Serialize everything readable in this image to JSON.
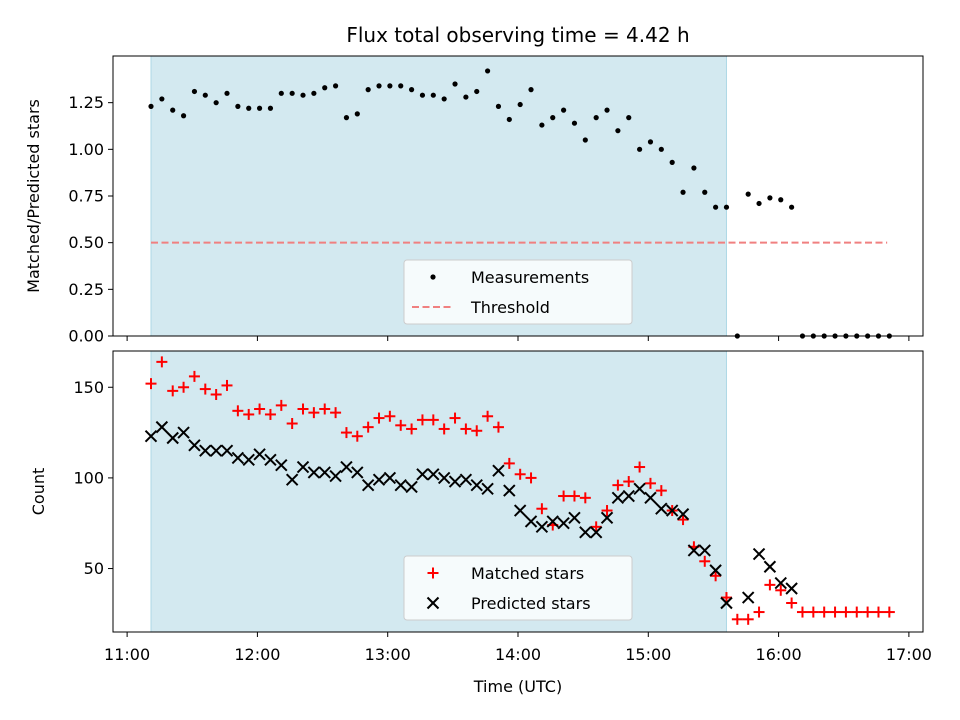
{
  "chart_data": [
    {
      "type": "scatter",
      "title": "Flux total observing time = 4.42 h",
      "ylabel": "Matched/Predicted stars",
      "xlim": [
        "11:00",
        "17:00"
      ],
      "ylim": [
        0,
        1.5
      ],
      "yticks": [
        "0.00",
        "0.25",
        "0.50",
        "0.75",
        "1.00",
        "1.25"
      ],
      "shaded_region": {
        "start": "11:11",
        "end": "15:36",
        "color": "#d3e9f0"
      },
      "threshold": {
        "name": "Threshold",
        "value": 0.5,
        "start": "11:11",
        "end": "16:50",
        "color": "#f08080"
      },
      "series": [
        {
          "name": "Measurements",
          "color": "#000000",
          "points": [
            [
              "11:11",
              1.23
            ],
            [
              "11:16",
              1.27
            ],
            [
              "11:21",
              1.21
            ],
            [
              "11:26",
              1.18
            ],
            [
              "11:31",
              1.31
            ],
            [
              "11:36",
              1.29
            ],
            [
              "11:41",
              1.25
            ],
            [
              "11:46",
              1.3
            ],
            [
              "11:51",
              1.23
            ],
            [
              "11:56",
              1.22
            ],
            [
              "12:01",
              1.22
            ],
            [
              "12:06",
              1.22
            ],
            [
              "12:11",
              1.3
            ],
            [
              "12:16",
              1.3
            ],
            [
              "12:21",
              1.29
            ],
            [
              "12:26",
              1.3
            ],
            [
              "12:31",
              1.33
            ],
            [
              "12:36",
              1.34
            ],
            [
              "12:41",
              1.17
            ],
            [
              "12:46",
              1.19
            ],
            [
              "12:51",
              1.32
            ],
            [
              "12:56",
              1.34
            ],
            [
              "13:01",
              1.34
            ],
            [
              "13:06",
              1.34
            ],
            [
              "13:11",
              1.32
            ],
            [
              "13:16",
              1.29
            ],
            [
              "13:21",
              1.29
            ],
            [
              "13:26",
              1.27
            ],
            [
              "13:31",
              1.35
            ],
            [
              "13:36",
              1.28
            ],
            [
              "13:41",
              1.31
            ],
            [
              "13:46",
              1.42
            ],
            [
              "13:51",
              1.23
            ],
            [
              "13:56",
              1.16
            ],
            [
              "14:01",
              1.24
            ],
            [
              "14:06",
              1.32
            ],
            [
              "14:11",
              1.13
            ],
            [
              "14:16",
              1.17
            ],
            [
              "14:21",
              1.21
            ],
            [
              "14:26",
              1.14
            ],
            [
              "14:31",
              1.05
            ],
            [
              "14:36",
              1.17
            ],
            [
              "14:41",
              1.21
            ],
            [
              "14:46",
              1.1
            ],
            [
              "14:51",
              1.17
            ],
            [
              "14:56",
              1.0
            ],
            [
              "15:01",
              1.04
            ],
            [
              "15:06",
              1.0
            ],
            [
              "15:11",
              0.93
            ],
            [
              "15:16",
              0.77
            ],
            [
              "15:21",
              0.9
            ],
            [
              "15:26",
              0.77
            ],
            [
              "15:31",
              0.69
            ],
            [
              "15:36",
              0.69
            ],
            [
              "15:41",
              0.0
            ],
            [
              "15:46",
              0.76
            ],
            [
              "15:51",
              0.71
            ],
            [
              "15:56",
              0.74
            ],
            [
              "16:01",
              0.73
            ],
            [
              "16:06",
              0.69
            ],
            [
              "16:11",
              0.0
            ],
            [
              "16:16",
              0.0
            ],
            [
              "16:21",
              0.0
            ],
            [
              "16:26",
              0.0
            ],
            [
              "16:31",
              0.0
            ],
            [
              "16:36",
              0.0
            ],
            [
              "16:41",
              0.0
            ],
            [
              "16:46",
              0.0
            ],
            [
              "16:51",
              0.0
            ]
          ]
        }
      ],
      "legend": {
        "position": "lower-center",
        "entries": [
          "Measurements",
          "Threshold"
        ]
      }
    },
    {
      "type": "scatter",
      "xlabel": "Time (UTC)",
      "ylabel": "Count",
      "xlim": [
        "11:00",
        "17:00"
      ],
      "xticks": [
        "11:00",
        "12:00",
        "13:00",
        "14:00",
        "15:00",
        "16:00",
        "17:00"
      ],
      "ylim": [
        15,
        170
      ],
      "yticks": [
        "50",
        "100",
        "150"
      ],
      "shaded_region": {
        "start": "11:11",
        "end": "15:36",
        "color": "#d3e9f0"
      },
      "series": [
        {
          "name": "Matched stars",
          "color": "#ff0000",
          "marker": "+",
          "points": [
            [
              "11:11",
              152
            ],
            [
              "11:16",
              164
            ],
            [
              "11:21",
              148
            ],
            [
              "11:26",
              150
            ],
            [
              "11:31",
              156
            ],
            [
              "11:36",
              149
            ],
            [
              "11:41",
              146
            ],
            [
              "11:46",
              151
            ],
            [
              "11:51",
              137
            ],
            [
              "11:56",
              135
            ],
            [
              "12:01",
              138
            ],
            [
              "12:06",
              135
            ],
            [
              "12:11",
              140
            ],
            [
              "12:16",
              130
            ],
            [
              "12:21",
              138
            ],
            [
              "12:26",
              136
            ],
            [
              "12:31",
              138
            ],
            [
              "12:36",
              136
            ],
            [
              "12:41",
              125
            ],
            [
              "12:46",
              123
            ],
            [
              "12:51",
              128
            ],
            [
              "12:56",
              133
            ],
            [
              "13:01",
              134
            ],
            [
              "13:06",
              129
            ],
            [
              "13:11",
              127
            ],
            [
              "13:16",
              132
            ],
            [
              "13:21",
              132
            ],
            [
              "13:26",
              127
            ],
            [
              "13:31",
              133
            ],
            [
              "13:36",
              127
            ],
            [
              "13:41",
              126
            ],
            [
              "13:46",
              134
            ],
            [
              "13:51",
              128
            ],
            [
              "13:56",
              108
            ],
            [
              "14:01",
              102
            ],
            [
              "14:06",
              100
            ],
            [
              "14:11",
              83
            ],
            [
              "14:16",
              74
            ],
            [
              "14:21",
              90
            ],
            [
              "14:26",
              90
            ],
            [
              "14:31",
              89
            ],
            [
              "14:36",
              73
            ],
            [
              "14:41",
              82
            ],
            [
              "14:46",
              96
            ],
            [
              "14:51",
              98
            ],
            [
              "14:56",
              106
            ],
            [
              "15:01",
              97
            ],
            [
              "15:06",
              93
            ],
            [
              "15:11",
              82
            ],
            [
              "15:16",
              77
            ],
            [
              "15:21",
              62
            ],
            [
              "15:26",
              54
            ],
            [
              "15:31",
              46
            ],
            [
              "15:36",
              34
            ],
            [
              "15:41",
              22
            ],
            [
              "15:46",
              22
            ],
            [
              "15:51",
              26
            ],
            [
              "15:56",
              41
            ],
            [
              "16:01",
              38
            ],
            [
              "16:06",
              31
            ],
            [
              "16:11",
              26
            ],
            [
              "16:16",
              26
            ],
            [
              "16:21",
              26
            ],
            [
              "16:26",
              26
            ],
            [
              "16:31",
              26
            ],
            [
              "16:36",
              26
            ],
            [
              "16:41",
              26
            ],
            [
              "16:46",
              26
            ],
            [
              "16:51",
              26
            ]
          ]
        },
        {
          "name": "Predicted stars",
          "color": "#000000",
          "marker": "x",
          "points": [
            [
              "11:11",
              123
            ],
            [
              "11:16",
              128
            ],
            [
              "11:21",
              122
            ],
            [
              "11:26",
              125
            ],
            [
              "11:31",
              118
            ],
            [
              "11:36",
              115
            ],
            [
              "11:41",
              115
            ],
            [
              "11:46",
              115
            ],
            [
              "11:51",
              111
            ],
            [
              "11:56",
              110
            ],
            [
              "12:01",
              113
            ],
            [
              "12:06",
              110
            ],
            [
              "12:11",
              107
            ],
            [
              "12:16",
              99
            ],
            [
              "12:21",
              106
            ],
            [
              "12:26",
              103
            ],
            [
              "12:31",
              103
            ],
            [
              "12:36",
              101
            ],
            [
              "12:41",
              106
            ],
            [
              "12:46",
              103
            ],
            [
              "12:51",
              96
            ],
            [
              "12:56",
              99
            ],
            [
              "13:01",
              100
            ],
            [
              "13:06",
              96
            ],
            [
              "13:11",
              95
            ],
            [
              "13:16",
              102
            ],
            [
              "13:21",
              102
            ],
            [
              "13:26",
              100
            ],
            [
              "13:31",
              98
            ],
            [
              "13:36",
              99
            ],
            [
              "13:41",
              96
            ],
            [
              "13:46",
              94
            ],
            [
              "13:51",
              104
            ],
            [
              "13:56",
              93
            ],
            [
              "14:01",
              82
            ],
            [
              "14:06",
              76
            ],
            [
              "14:11",
              73
            ],
            [
              "14:16",
              76
            ],
            [
              "14:21",
              75
            ],
            [
              "14:26",
              78
            ],
            [
              "14:31",
              70
            ],
            [
              "14:36",
              70
            ],
            [
              "14:41",
              78
            ],
            [
              "14:46",
              89
            ],
            [
              "14:51",
              90
            ],
            [
              "14:56",
              94
            ],
            [
              "15:01",
              89
            ],
            [
              "15:06",
              83
            ],
            [
              "15:11",
              82
            ],
            [
              "15:16",
              80
            ],
            [
              "15:21",
              60
            ],
            [
              "15:26",
              60
            ],
            [
              "15:31",
              49
            ],
            [
              "15:36",
              31
            ],
            [
              "15:46",
              34
            ],
            [
              "15:51",
              58
            ],
            [
              "15:56",
              51
            ],
            [
              "16:01",
              42
            ],
            [
              "16:06",
              39
            ]
          ]
        }
      ],
      "legend": {
        "position": "lower-center",
        "entries": [
          "Matched stars",
          "Predicted stars"
        ]
      }
    }
  ]
}
